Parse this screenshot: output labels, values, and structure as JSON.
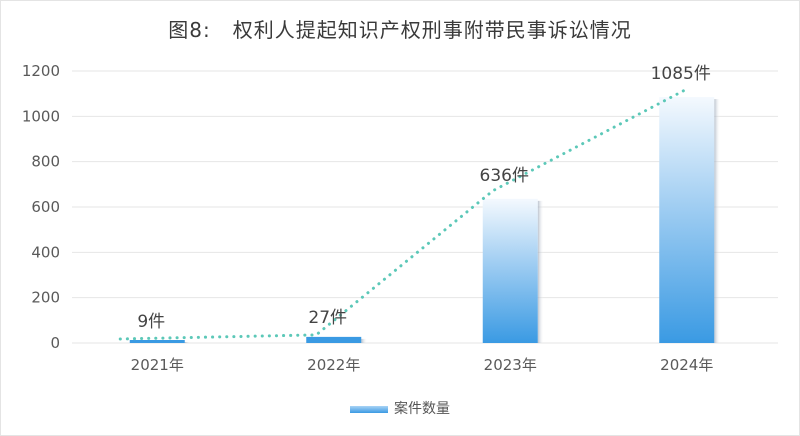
{
  "title": {
    "figure_no": "图8:",
    "text": "权利人提起知识产权刑事附带民事诉讼情况"
  },
  "legend": {
    "label": "案件数量",
    "color": "#3a9ae3"
  },
  "colors": {
    "bar_top": "#f4f9fe",
    "bar_bottom": "#3a9ae3",
    "trend": "#5cc8b8",
    "grid": "#e6e6e6"
  },
  "chart_data": {
    "type": "bar",
    "title": "图8: 权利人提起知识产权刑事附带民事诉讼情况",
    "categories": [
      "2021年",
      "2022年",
      "2023年",
      "2024年"
    ],
    "series": [
      {
        "name": "案件数量",
        "values": [
          9,
          27,
          636,
          1085
        ],
        "unit": "件"
      }
    ],
    "data_labels": [
      "9件",
      "27件",
      "636件",
      "1085件"
    ],
    "overlay": {
      "type": "line",
      "style": "dotted",
      "follows": "案件数量"
    },
    "xlabel": "",
    "ylabel": "",
    "ylim": [
      0,
      1200
    ],
    "yticks": [
      0,
      200,
      400,
      600,
      800,
      1000,
      1200
    ],
    "grid": true,
    "legend_position": "bottom"
  }
}
